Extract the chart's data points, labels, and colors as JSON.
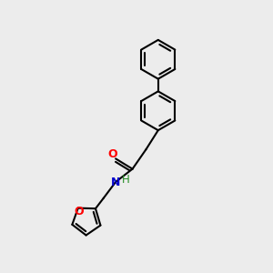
{
  "background_color": "#ececec",
  "bond_color": "#000000",
  "o_color": "#ff0000",
  "n_color": "#0000cc",
  "h_color": "#228b22",
  "line_width": 1.5,
  "dbo": 0.12,
  "figsize": [
    3.0,
    3.0
  ],
  "dpi": 100,
  "xlim": [
    0,
    10
  ],
  "ylim": [
    0,
    10
  ],
  "ring_r": 0.72,
  "furan_r": 0.55
}
